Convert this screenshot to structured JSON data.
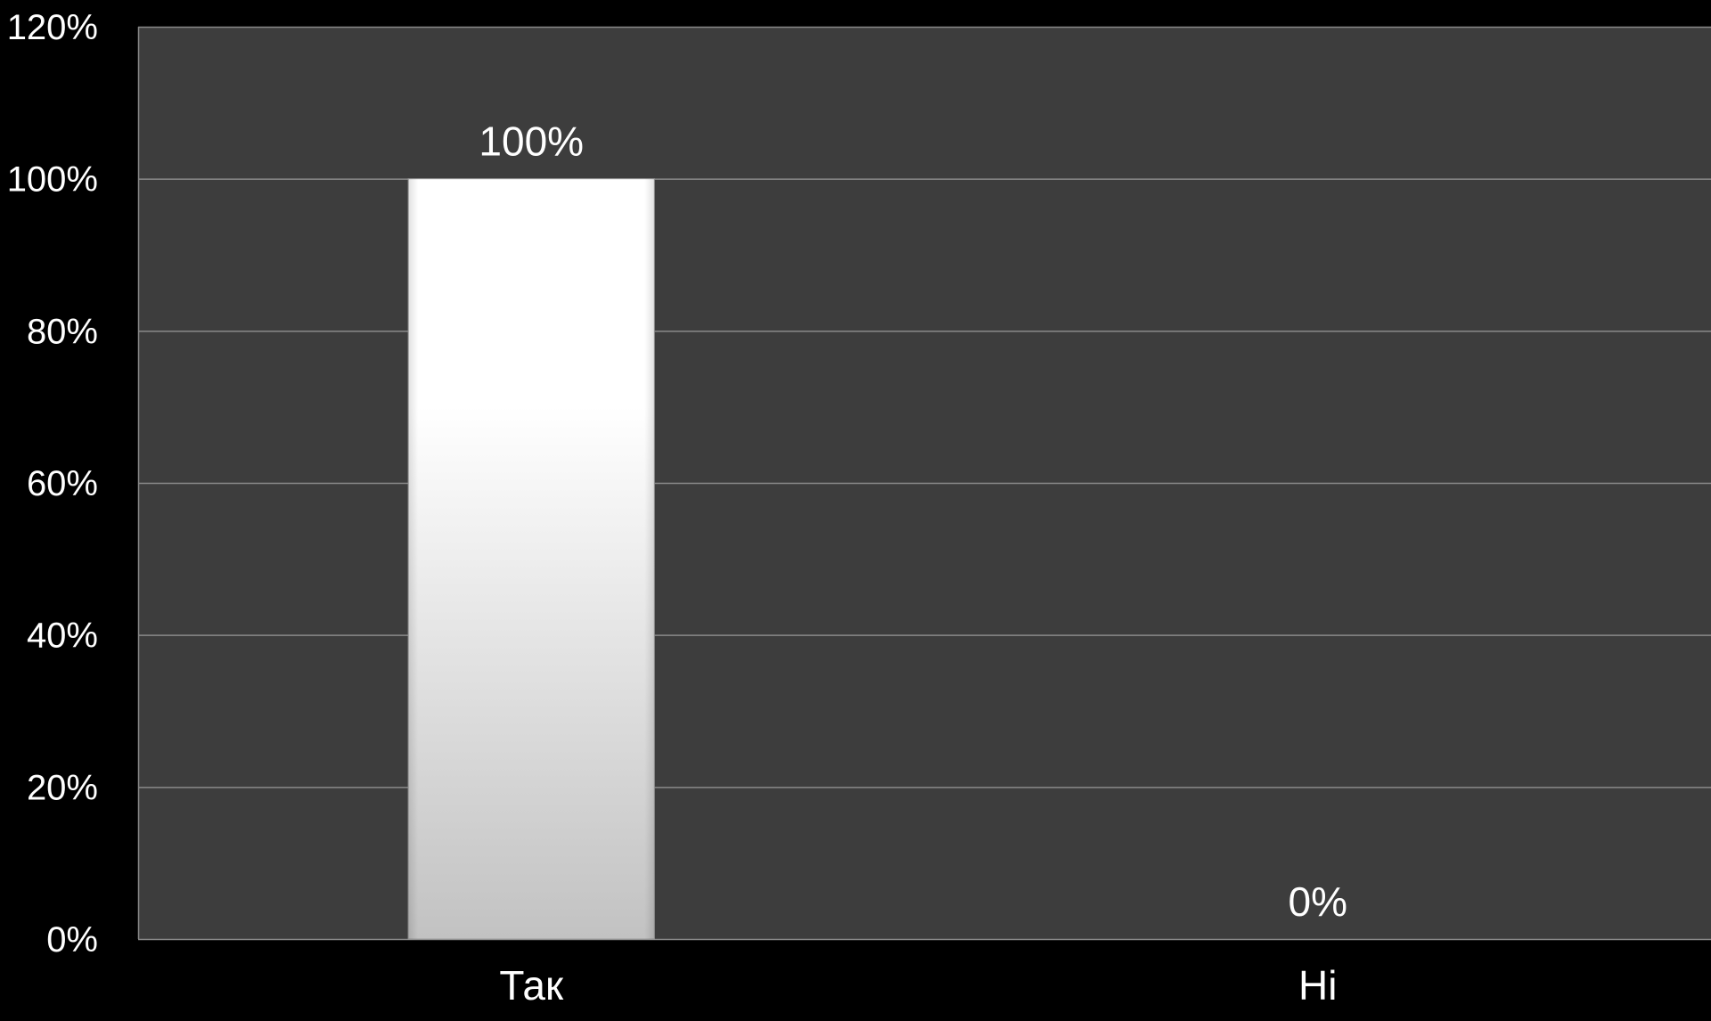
{
  "chart_data": {
    "type": "bar",
    "categories": [
      "Так",
      "Ні"
    ],
    "values": [
      100,
      0
    ],
    "data_labels": [
      "100%",
      "0%"
    ],
    "ylim": [
      0,
      120
    ],
    "y_ticks": [
      0,
      20,
      40,
      60,
      80,
      100,
      120
    ],
    "y_tick_labels": [
      "0%",
      "20%",
      "40%",
      "60%",
      "80%",
      "100%",
      "120%"
    ],
    "grid": true,
    "legend": "none",
    "colors": {
      "page_background": "#000000",
      "plot_background": "#3d3d3d",
      "gridline": "#8a8a8a",
      "bar_top": "#ffffff",
      "bar_bottom": "#c2c2c2",
      "text": "#ffffff"
    }
  }
}
